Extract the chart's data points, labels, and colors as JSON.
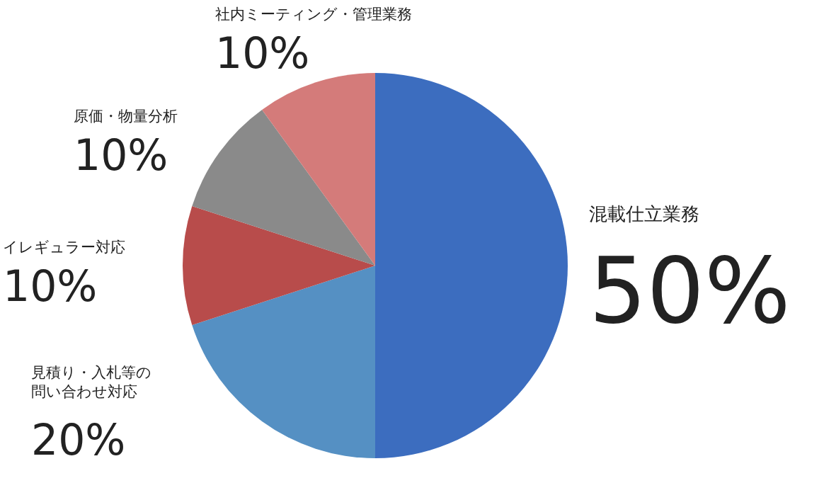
{
  "chart_data": {
    "type": "pie",
    "categories": [
      "混載仕立業務",
      "見積り・入札等の問い合わせ対応",
      "イレギュラー対応",
      "原価・物量分析",
      "社内ミーティング・管理業務"
    ],
    "values": [
      50,
      20,
      10,
      10,
      10
    ],
    "value_labels": [
      "50%",
      "20%",
      "10%",
      "10%",
      "10%"
    ],
    "colors": [
      "#3c6dbf",
      "#5590c3",
      "#b84c4b",
      "#8a8a8a",
      "#d47b7a"
    ],
    "legend": false
  }
}
